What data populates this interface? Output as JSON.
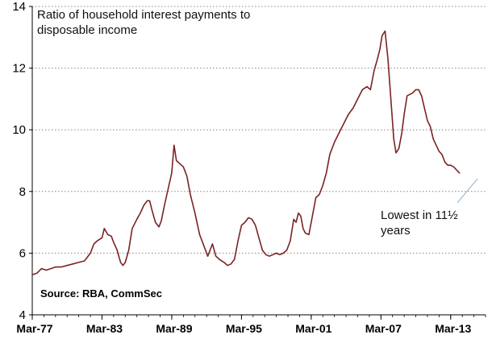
{
  "chart_data": {
    "type": "line",
    "title_lines": [
      "Ratio of household interest payments to",
      "disposable income"
    ],
    "source": "Source: RBA, CommSec",
    "annotation_lines": [
      "Lowest in 11½",
      "years"
    ],
    "xlabel": "",
    "ylabel": "",
    "ylim": [
      4,
      14
    ],
    "y_ticks": [
      4,
      6,
      8,
      10,
      12,
      14
    ],
    "xlim": [
      1977.0,
      2016.0
    ],
    "x_ticks": [
      {
        "label": "Mar-77",
        "year": 1977.0
      },
      {
        "label": "Mar-83",
        "year": 1983.0
      },
      {
        "label": "Mar-89",
        "year": 1989.0
      },
      {
        "label": "Mar-95",
        "year": 1995.0
      },
      {
        "label": "Mar-01",
        "year": 2001.0
      },
      {
        "label": "Mar-07",
        "year": 2007.0
      },
      {
        "label": "Mar-13",
        "year": 2013.0
      }
    ],
    "grid": "horizontal dotted",
    "colors": {
      "line": "#7b2323",
      "grid": "#888888",
      "axis": "#000000",
      "leader": "#9bbbd4"
    },
    "series": [
      {
        "points": [
          [
            1977.0,
            5.3
          ],
          [
            1977.4,
            5.35
          ],
          [
            1977.8,
            5.5
          ],
          [
            1978.2,
            5.45
          ],
          [
            1978.6,
            5.5
          ],
          [
            1979.0,
            5.55
          ],
          [
            1979.5,
            5.55
          ],
          [
            1980.0,
            5.6
          ],
          [
            1980.5,
            5.65
          ],
          [
            1981.0,
            5.7
          ],
          [
            1981.5,
            5.75
          ],
          [
            1982.0,
            6.0
          ],
          [
            1982.3,
            6.3
          ],
          [
            1982.6,
            6.4
          ],
          [
            1983.0,
            6.5
          ],
          [
            1983.2,
            6.8
          ],
          [
            1983.5,
            6.6
          ],
          [
            1983.8,
            6.55
          ],
          [
            1984.0,
            6.35
          ],
          [
            1984.3,
            6.1
          ],
          [
            1984.6,
            5.7
          ],
          [
            1984.8,
            5.6
          ],
          [
            1985.0,
            5.7
          ],
          [
            1985.3,
            6.1
          ],
          [
            1985.6,
            6.8
          ],
          [
            1986.0,
            7.1
          ],
          [
            1986.3,
            7.3
          ],
          [
            1986.6,
            7.55
          ],
          [
            1986.9,
            7.7
          ],
          [
            1987.1,
            7.7
          ],
          [
            1987.3,
            7.4
          ],
          [
            1987.6,
            7.0
          ],
          [
            1987.9,
            6.85
          ],
          [
            1988.1,
            7.05
          ],
          [
            1988.4,
            7.6
          ],
          [
            1988.7,
            8.1
          ],
          [
            1989.0,
            8.6
          ],
          [
            1989.2,
            9.5
          ],
          [
            1989.4,
            9.0
          ],
          [
            1989.7,
            8.9
          ],
          [
            1990.0,
            8.8
          ],
          [
            1990.3,
            8.5
          ],
          [
            1990.6,
            7.9
          ],
          [
            1991.0,
            7.3
          ],
          [
            1991.4,
            6.6
          ],
          [
            1991.8,
            6.2
          ],
          [
            1992.1,
            5.9
          ],
          [
            1992.5,
            6.3
          ],
          [
            1992.8,
            5.9
          ],
          [
            1993.1,
            5.8
          ],
          [
            1993.5,
            5.7
          ],
          [
            1993.8,
            5.6
          ],
          [
            1994.1,
            5.65
          ],
          [
            1994.4,
            5.8
          ],
          [
            1994.7,
            6.4
          ],
          [
            1995.0,
            6.9
          ],
          [
            1995.3,
            7.0
          ],
          [
            1995.6,
            7.15
          ],
          [
            1995.9,
            7.1
          ],
          [
            1996.2,
            6.9
          ],
          [
            1996.5,
            6.5
          ],
          [
            1996.8,
            6.1
          ],
          [
            1997.1,
            5.95
          ],
          [
            1997.4,
            5.9
          ],
          [
            1997.7,
            5.95
          ],
          [
            1998.0,
            6.0
          ],
          [
            1998.3,
            5.95
          ],
          [
            1998.6,
            6.0
          ],
          [
            1998.9,
            6.1
          ],
          [
            1999.2,
            6.4
          ],
          [
            1999.5,
            7.1
          ],
          [
            1999.7,
            7.0
          ],
          [
            1999.9,
            7.3
          ],
          [
            2000.1,
            7.2
          ],
          [
            2000.3,
            6.8
          ],
          [
            2000.5,
            6.65
          ],
          [
            2000.8,
            6.6
          ],
          [
            2001.1,
            7.2
          ],
          [
            2001.4,
            7.8
          ],
          [
            2001.7,
            7.9
          ],
          [
            2002.0,
            8.2
          ],
          [
            2002.3,
            8.6
          ],
          [
            2002.6,
            9.2
          ],
          [
            2003.0,
            9.6
          ],
          [
            2003.4,
            9.9
          ],
          [
            2003.8,
            10.2
          ],
          [
            2004.2,
            10.5
          ],
          [
            2004.6,
            10.7
          ],
          [
            2005.0,
            11.0
          ],
          [
            2005.4,
            11.3
          ],
          [
            2005.8,
            11.4
          ],
          [
            2006.1,
            11.3
          ],
          [
            2006.4,
            11.9
          ],
          [
            2006.7,
            12.3
          ],
          [
            2006.9,
            12.6
          ],
          [
            2007.1,
            13.05
          ],
          [
            2007.35,
            13.2
          ],
          [
            2007.6,
            12.3
          ],
          [
            2007.85,
            11.0
          ],
          [
            2008.1,
            9.7
          ],
          [
            2008.3,
            9.25
          ],
          [
            2008.55,
            9.4
          ],
          [
            2008.8,
            9.9
          ],
          [
            2009.0,
            10.5
          ],
          [
            2009.25,
            11.1
          ],
          [
            2009.5,
            11.15
          ],
          [
            2009.75,
            11.2
          ],
          [
            2010.0,
            11.3
          ],
          [
            2010.25,
            11.3
          ],
          [
            2010.5,
            11.1
          ],
          [
            2010.75,
            10.7
          ],
          [
            2011.0,
            10.3
          ],
          [
            2011.25,
            10.1
          ],
          [
            2011.5,
            9.7
          ],
          [
            2011.75,
            9.5
          ],
          [
            2012.0,
            9.3
          ],
          [
            2012.25,
            9.2
          ],
          [
            2012.5,
            8.95
          ],
          [
            2012.75,
            8.85
          ],
          [
            2013.0,
            8.85
          ],
          [
            2013.25,
            8.8
          ],
          [
            2013.5,
            8.7
          ],
          [
            2013.75,
            8.6
          ]
        ]
      }
    ]
  }
}
